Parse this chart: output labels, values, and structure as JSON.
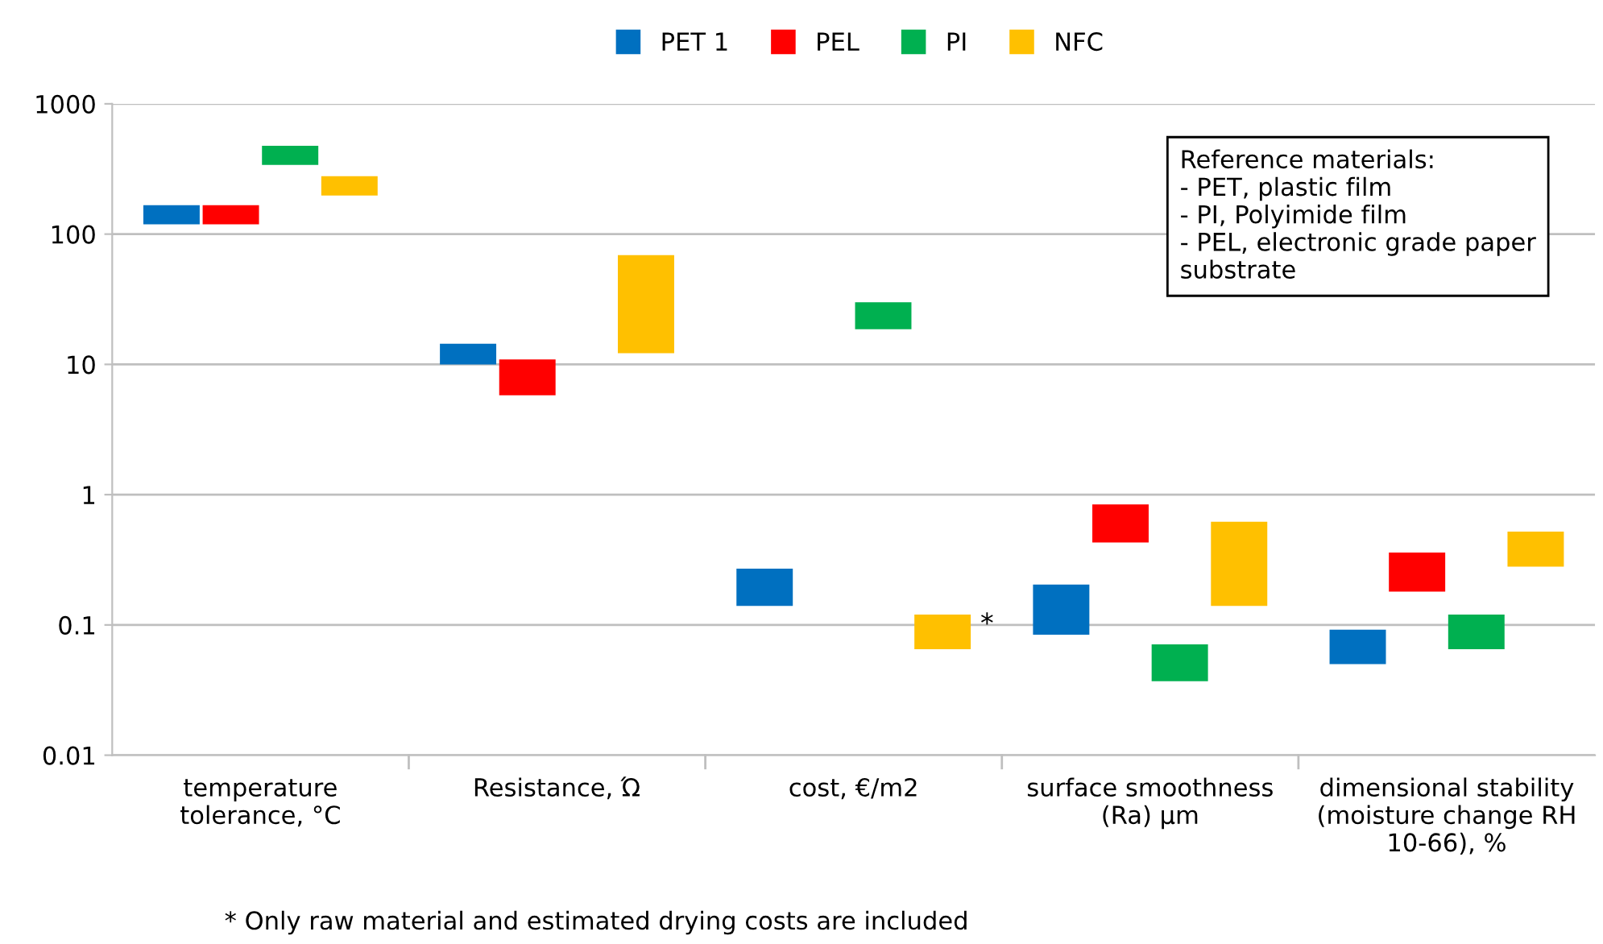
{
  "chart_data": {
    "type": "bar",
    "log": "y",
    "grid": "y",
    "legend": "top",
    "categories": [
      "temperature\ntolerance, °C",
      "Resistance, Ώ",
      "cost, €/m2",
      "surface smoothness\n(Ra) µm",
      "dimensional stability\n(moisture change RH\n10-66), %"
    ],
    "series": [
      {
        "name": "PET 1",
        "color": "#0070c0",
        "base": [
          119,
          10,
          0.14,
          0.084,
          0.05
        ],
        "values": [
          48,
          4.4,
          0.13,
          0.12,
          0.042
        ]
      },
      {
        "name": "PEL",
        "color": "#ff0000",
        "base": [
          119,
          5.8,
          null,
          0.43,
          0.18
        ],
        "values": [
          48,
          5.1,
          null,
          0.41,
          0.18
        ]
      },
      {
        "name": "PI",
        "color": "#00b050",
        "base": [
          340,
          null,
          18.6,
          0.037,
          0.065
        ],
        "values": [
          137,
          null,
          11.4,
          0.034,
          0.055
        ]
      },
      {
        "name": "NFC",
        "color": "#ffc000",
        "base": [
          198,
          12.2,
          0.065,
          0.14,
          0.28
        ],
        "values": [
          80,
          56.8,
          0.055,
          0.48,
          0.24
        ]
      }
    ],
    "ylim": [
      0.01,
      1000
    ],
    "yticks": [
      0.01,
      0.1,
      1,
      10,
      100,
      1000
    ],
    "annotations": [
      "Reference materials:\n- PET, plastic film\n- PI, Polyimide film\n- PEL, electronic grade paper\nsubstrate",
      "* Only raw material and estimated drying costs are included",
      "*"
    ]
  }
}
